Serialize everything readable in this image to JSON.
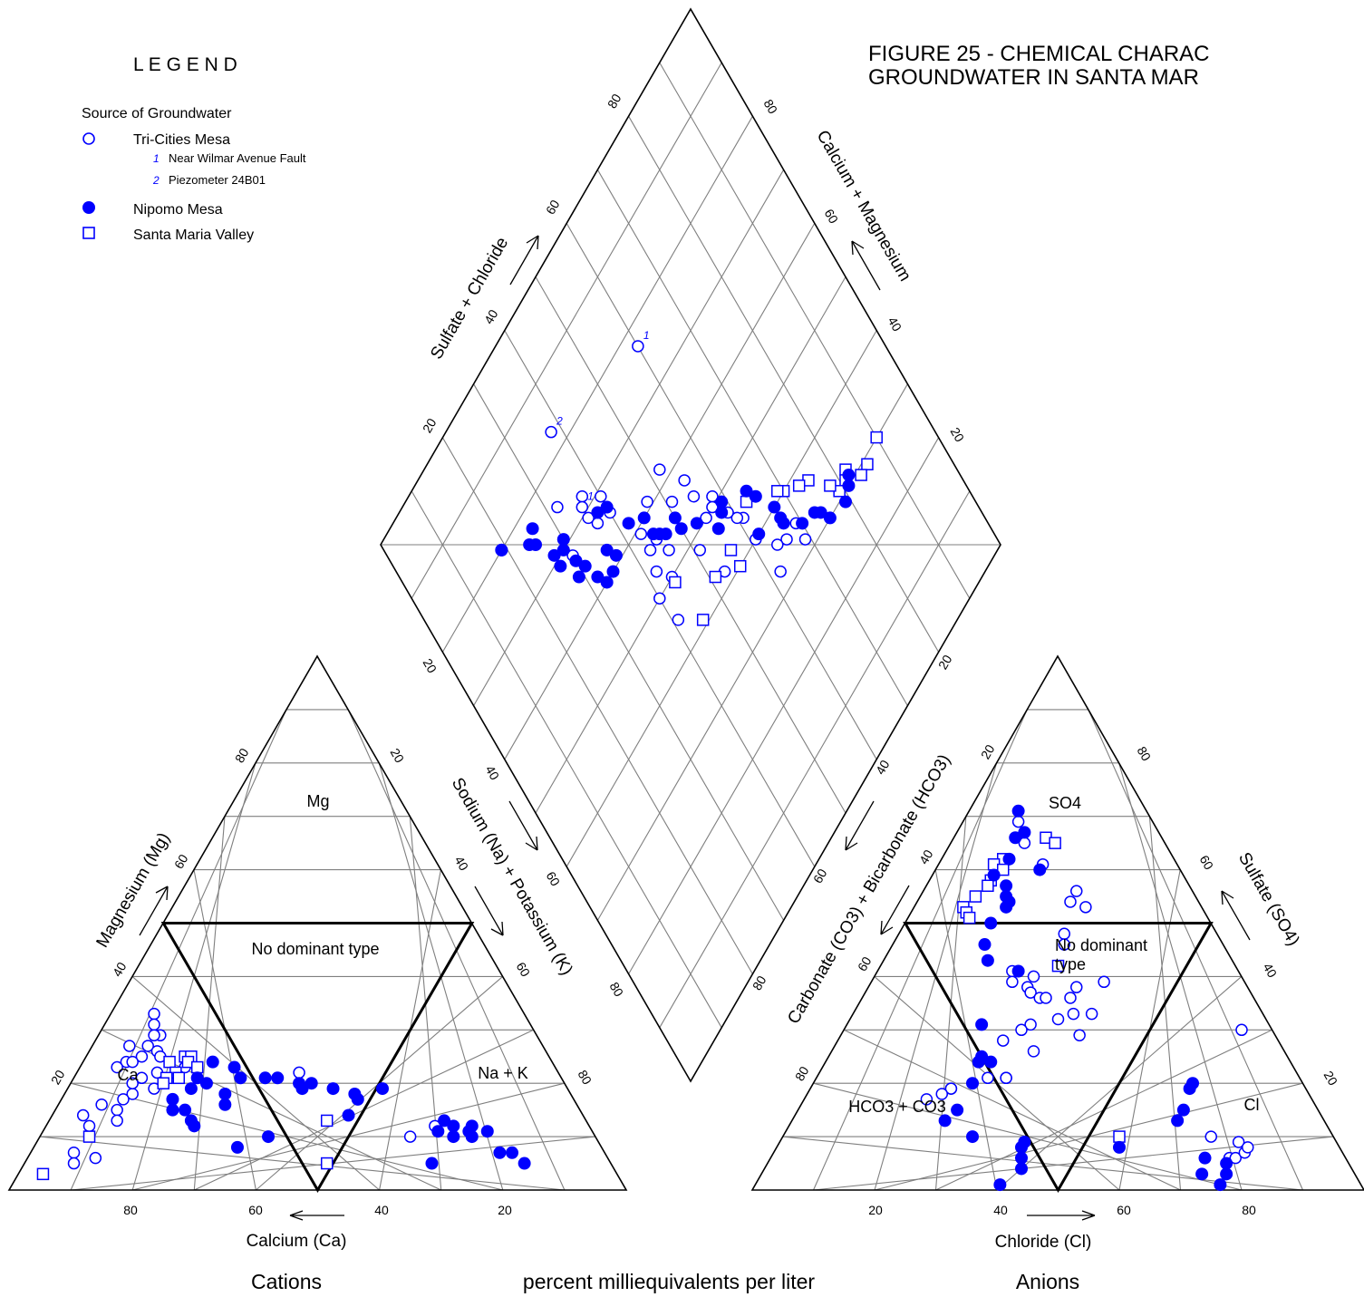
{
  "title_line1": "FIGURE 25 - CHEMICAL CHARAC",
  "title_line2": "GROUNDWATER IN SANTA MAR",
  "legend": {
    "heading": "L E G E N D",
    "subheading": "Source of Groundwater",
    "items": [
      {
        "label": "Tri-Cities Mesa",
        "marker": "open-circle"
      },
      {
        "label": "Nipomo Mesa",
        "marker": "filled-circle"
      },
      {
        "label": "Santa Maria Valley",
        "marker": "open-square"
      }
    ],
    "notes": [
      {
        "num": "1",
        "label": "Near Wilmar Avenue Fault"
      },
      {
        "num": "2",
        "label": "Piezometer 24B01"
      }
    ]
  },
  "colors": {
    "marker": "#0000ff",
    "grid": "#7f7f7f",
    "frame": "#000000"
  },
  "bottom": {
    "cations": "Cations",
    "units": "percent milliequivalents per liter",
    "anions": "Anions"
  },
  "cation_labels": {
    "axis_ca": "Calcium (Ca)",
    "axis_mg": "Magnesium (Mg)",
    "axis_nak": "Sodium (Na) + Potassium (K)",
    "zone_mg": "Mg",
    "zone_ca": "Ca",
    "zone_nak": "Na + K",
    "zone_none": "No dominant type"
  },
  "anion_labels": {
    "axis_cl": "Chloride (Cl)",
    "axis_so4": "Sulfate (SO4)",
    "axis_hco3": "Carbonate (CO3) + Bicarbonate (HCO3)",
    "zone_so4": "SO4",
    "zone_cl": "Cl",
    "zone_hco3": "HCO3 + CO3",
    "zone_none_1": "No dominant",
    "zone_none_2": "type"
  },
  "diamond_labels": {
    "axis_so4cl": "Sulfate + Chloride",
    "axis_camg": "Calcium + Magnesium"
  },
  "chart_data": {
    "type": "scatter",
    "series_names": [
      "Tri-Cities Mesa",
      "Nipomo Mesa",
      "Santa Maria Valley"
    ],
    "ticks": [
      "20",
      "40",
      "60",
      "80"
    ],
    "cations": {
      "note": "Mg %, Na+K % (Ca = 100 - Mg - NaK)",
      "tri_cities": [
        [
          33,
          7
        ],
        [
          31,
          8
        ],
        [
          29,
          10
        ],
        [
          29,
          9
        ],
        [
          27,
          6
        ],
        [
          27,
          9
        ],
        [
          26,
          11
        ],
        [
          25,
          9
        ],
        [
          25,
          12
        ],
        [
          24,
          7
        ],
        [
          24,
          8
        ],
        [
          23,
          6
        ],
        [
          22,
          13
        ],
        [
          21,
          17
        ],
        [
          21,
          11
        ],
        [
          20,
          15
        ],
        [
          19,
          14
        ],
        [
          18,
          11
        ],
        [
          17,
          10
        ],
        [
          16,
          7
        ],
        [
          15,
          10
        ],
        [
          13,
          11
        ],
        [
          12,
          7
        ],
        [
          14,
          5
        ],
        [
          7,
          7
        ],
        [
          5,
          8
        ],
        [
          20,
          10
        ],
        [
          21,
          20
        ],
        [
          22,
          36
        ],
        [
          12,
          63
        ],
        [
          10,
          60
        ],
        [
          6,
          11
        ],
        [
          23,
          17
        ]
      ],
      "nipomo": [
        [
          24,
          21
        ],
        [
          23,
          25
        ],
        [
          21,
          27
        ],
        [
          21,
          31
        ],
        [
          21,
          33
        ],
        [
          20,
          37
        ],
        [
          20,
          39
        ],
        [
          19,
          38
        ],
        [
          19,
          43
        ],
        [
          18,
          47
        ],
        [
          17,
          48
        ],
        [
          19,
          51
        ],
        [
          16,
          27
        ],
        [
          21,
          20
        ],
        [
          19,
          20
        ],
        [
          17,
          18
        ],
        [
          14,
          48
        ],
        [
          18,
          26
        ],
        [
          15,
          21
        ],
        [
          15,
          19
        ],
        [
          12,
          24
        ],
        [
          13,
          23
        ],
        [
          12,
          66
        ],
        [
          12,
          69
        ],
        [
          11,
          69
        ],
        [
          11,
          64
        ],
        [
          10,
          67
        ],
        [
          10,
          70
        ],
        [
          11,
          72
        ],
        [
          8,
          33
        ],
        [
          7,
          76
        ],
        [
          7,
          78
        ],
        [
          5,
          66
        ],
        [
          5,
          81
        ],
        [
          20,
          22
        ],
        [
          13,
          64
        ],
        [
          10,
          37
        ]
      ],
      "santa_maria": [
        [
          24,
          14
        ],
        [
          25,
          16
        ],
        [
          25,
          17
        ],
        [
          24,
          17
        ],
        [
          23,
          19
        ],
        [
          22,
          16
        ],
        [
          21,
          17
        ],
        [
          21,
          15
        ],
        [
          20,
          15
        ],
        [
          13,
          45
        ],
        [
          10,
          8
        ],
        [
          5,
          49
        ],
        [
          3,
          4
        ]
      ]
    },
    "anions": {
      "note": "SO4 %, Cl % (HCO3+CO3 = 100 - SO4 - Cl)",
      "tri_cities": [
        [
          69,
          9
        ],
        [
          67,
          11
        ],
        [
          65,
          12
        ],
        [
          61,
          17
        ],
        [
          56,
          25
        ],
        [
          54,
          25
        ],
        [
          53,
          28
        ],
        [
          48,
          27
        ],
        [
          46,
          28
        ],
        [
          41,
          22
        ],
        [
          39,
          23
        ],
        [
          40,
          26
        ],
        [
          38,
          26
        ],
        [
          38,
          34
        ],
        [
          37,
          27
        ],
        [
          36,
          29
        ],
        [
          36,
          30
        ],
        [
          33,
          36
        ],
        [
          32,
          34
        ],
        [
          31,
          30
        ],
        [
          30,
          29
        ],
        [
          28,
          27
        ],
        [
          29,
          39
        ],
        [
          26,
          33
        ],
        [
          21,
          31
        ],
        [
          21,
          31
        ],
        [
          20,
          26
        ],
        [
          19,
          23
        ],
        [
          19,
          23
        ],
        [
          18,
          22
        ],
        [
          17,
          20
        ],
        [
          33,
          39
        ],
        [
          36,
          34
        ],
        [
          39,
          38
        ],
        [
          21,
          28
        ],
        [
          30,
          65
        ],
        [
          10,
          70
        ],
        [
          9,
          75
        ],
        [
          6,
          75
        ],
        [
          6,
          76
        ],
        [
          7,
          77
        ],
        [
          8,
          77
        ]
      ],
      "nipomo": [
        [
          71,
          8
        ],
        [
          67,
          11
        ],
        [
          66,
          10
        ],
        [
          62,
          11
        ],
        [
          60,
          17
        ],
        [
          59,
          10
        ],
        [
          57,
          13
        ],
        [
          55,
          14
        ],
        [
          54,
          15
        ],
        [
          53,
          15
        ],
        [
          50,
          14
        ],
        [
          46,
          15
        ],
        [
          43,
          17
        ],
        [
          41,
          23
        ],
        [
          31,
          22
        ],
        [
          25,
          25
        ],
        [
          24,
          25
        ],
        [
          24,
          27
        ],
        [
          20,
          26
        ],
        [
          15,
          26
        ],
        [
          13,
          25
        ],
        [
          10,
          31
        ],
        [
          8,
          40
        ],
        [
          9,
          40
        ],
        [
          6,
          41
        ],
        [
          4,
          42
        ],
        [
          1,
          40
        ],
        [
          20,
          62
        ],
        [
          19,
          62
        ],
        [
          15,
          63
        ],
        [
          13,
          63
        ],
        [
          3,
          72
        ],
        [
          5,
          75
        ],
        [
          3,
          76
        ],
        [
          1,
          76
        ],
        [
          6,
          71
        ],
        [
          8,
          56
        ]
      ],
      "santa_maria": [
        [
          66,
          15
        ],
        [
          65,
          17
        ],
        [
          62,
          10
        ],
        [
          61,
          9
        ],
        [
          60,
          11
        ],
        [
          58,
          10
        ],
        [
          57,
          10
        ],
        [
          55,
          9
        ],
        [
          53,
          8
        ],
        [
          52,
          9
        ],
        [
          51,
          10
        ],
        [
          42,
          29
        ],
        [
          10,
          55
        ]
      ]
    },
    "diamond": {
      "note": "Sulfate+Chloride %, Calcium+Magnesium %",
      "tri_cities": [
        [
          69,
          68
        ],
        [
          69,
          65
        ],
        [
          66,
          65
        ],
        [
          62,
          67
        ],
        [
          64,
          64
        ],
        [
          61,
          60
        ],
        [
          61,
          56
        ],
        [
          60,
          55
        ],
        [
          59,
          53
        ],
        [
          58,
          49
        ],
        [
          57,
          50
        ],
        [
          55,
          50
        ],
        [
          55,
          46
        ],
        [
          55,
          43
        ],
        [
          51,
          43
        ],
        [
          52,
          38
        ],
        [
          47,
          39
        ],
        [
          43,
          41
        ],
        [
          42,
          47
        ],
        [
          44,
          50
        ],
        [
          46,
          47
        ],
        [
          45,
          44
        ],
        [
          40,
          34
        ],
        [
          40,
          33
        ],
        [
          40,
          31
        ],
        [
          37,
          33
        ],
        [
          36,
          31
        ],
        [
          37,
          28
        ],
        [
          30,
          32
        ],
        [
          32,
          25
        ],
        [
          40,
          50
        ],
        [
          53,
          58
        ],
        [
          51,
          52
        ],
        [
          43,
          44
        ],
        [
          41,
          55
        ]
      ],
      "nipomo": [
        [
          82,
          69
        ],
        [
          81,
          70
        ],
        [
          79,
          71
        ],
        [
          75,
          70
        ],
        [
          74,
          68
        ],
        [
          73,
          67
        ],
        [
          70,
          66
        ],
        [
          67,
          63
        ],
        [
          67,
          62
        ],
        [
          67,
          60
        ],
        [
          65,
          56
        ],
        [
          64,
          54
        ],
        [
          62,
          60
        ],
        [
          59,
          51
        ],
        [
          58,
          52
        ],
        [
          56,
          53
        ],
        [
          53,
          49
        ],
        [
          50,
          47
        ],
        [
          50,
          45
        ],
        [
          47,
          45
        ],
        [
          46,
          44
        ],
        [
          45,
          40
        ],
        [
          45,
          43
        ],
        [
          42,
          38
        ],
        [
          40,
          33
        ],
        [
          38,
          32
        ],
        [
          37,
          39
        ],
        [
          35,
          40
        ],
        [
          33,
          40
        ],
        [
          32,
          38
        ],
        [
          29,
          35
        ],
        [
          30,
          33
        ],
        [
          30,
          29
        ],
        [
          27,
          31
        ],
        [
          29,
          30
        ],
        [
          27,
          29
        ],
        [
          24,
          24
        ],
        [
          25,
          25
        ],
        [
          19,
          20
        ],
        [
          19,
          20
        ],
        [
          31,
          35
        ],
        [
          36,
          37
        ],
        [
          26,
          23
        ]
      ],
      "santa_maria": [
        [
          90,
          70
        ],
        [
          86,
          71
        ],
        [
          84,
          71
        ],
        [
          82,
          68
        ],
        [
          81,
          69
        ],
        [
          79,
          69
        ],
        [
          78,
          67
        ],
        [
          75,
          63
        ],
        [
          73,
          62
        ],
        [
          70,
          60
        ],
        [
          69,
          59
        ],
        [
          63,
          55
        ],
        [
          56,
          57
        ],
        [
          51,
          57
        ],
        [
          56,
          60
        ],
        [
          44,
          51
        ],
        [
          45,
          59
        ]
      ]
    },
    "annotated": [
      {
        "plot": "diamond",
        "note": "1",
        "sc": 60,
        "cm": 23
      },
      {
        "plot": "diamond",
        "note": "2",
        "sc": 38,
        "cm": 17
      },
      {
        "plot": "diamond",
        "note": "1",
        "sc": 36,
        "cm": 29
      }
    ]
  }
}
